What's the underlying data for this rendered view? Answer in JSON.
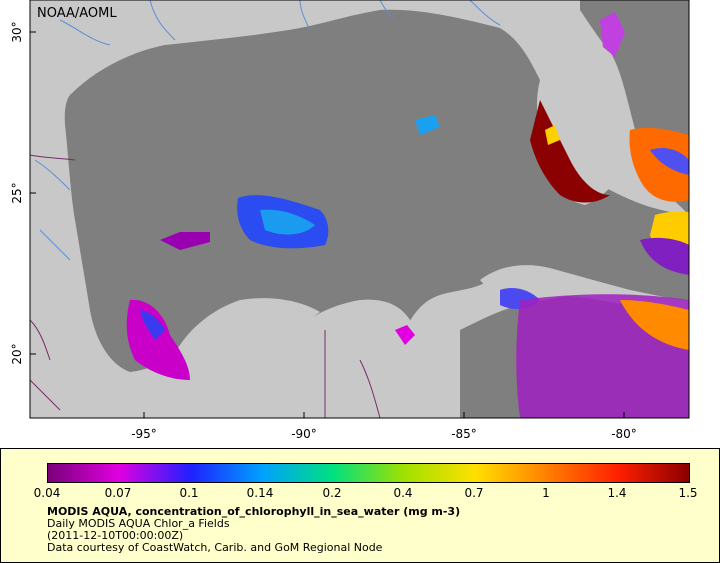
{
  "credit": "NOAA/AOML",
  "map": {
    "colors": {
      "ocean": "#7f7f7f",
      "land": "#c8c8c8",
      "rivers": "#5b8fd6",
      "borders": "#7a2a6a"
    },
    "lon_ticks": [
      "-95°",
      "-90°",
      "-85°",
      "-80°"
    ],
    "lat_ticks": [
      "30°",
      "25°",
      "20°"
    ]
  },
  "legend": {
    "colorbar_ticks": [
      "0.04",
      "0.07",
      "0.1",
      "0.14",
      "0.2",
      "0.4",
      "0.7",
      "1",
      "1.4",
      "1.5"
    ],
    "colormap": [
      "#7a007a",
      "#e000e0",
      "#2020ff",
      "#00a0ff",
      "#00e080",
      "#a0e000",
      "#ffe000",
      "#ff8000",
      "#ff2000",
      "#8b0000"
    ],
    "title": "MODIS AQUA, concentration_of_chlorophyll_in_sea_water (mg m-3)",
    "subtitle1": "Daily MODIS AQUA Chlor_a Fields",
    "subtitle2": "(2011-12-10T00:00:00Z)",
    "subtitle3": "Data courtesy of CoastWatch, Carib. and GoM Regional Node"
  }
}
